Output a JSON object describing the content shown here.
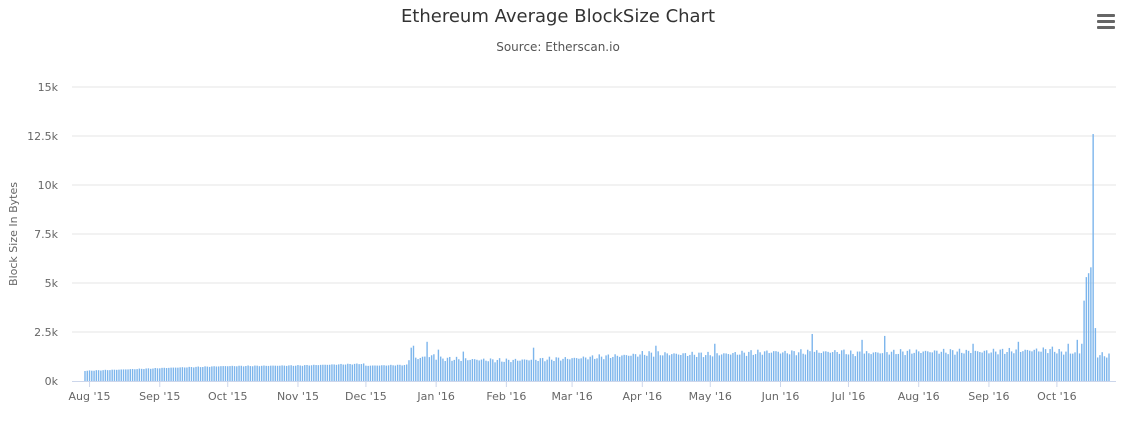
{
  "chart_data": {
    "type": "bar",
    "title": "Ethereum Average BlockSize Chart",
    "subtitle": "Source: Etherscan.io",
    "xlabel": "",
    "ylabel": "Block Size In Bytes",
    "ylim": [
      0,
      15000
    ],
    "y_ticks": [
      "0k",
      "2.5k",
      "5k",
      "7.5k",
      "10k",
      "12.5k",
      "15k"
    ],
    "y_tick_values": [
      0,
      2500,
      5000,
      7500,
      10000,
      12500,
      15000
    ],
    "x_ticks": [
      "Aug '15",
      "Sep '15",
      "Oct '15",
      "Nov '15",
      "Dec '15",
      "Jan '16",
      "Feb '16",
      "Mar '16",
      "Apr '16",
      "May '16",
      "Jun '16",
      "Jul '16",
      "Aug '16",
      "Sep '16",
      "Oct '16"
    ],
    "x_tick_dates": [
      "2015-08-01",
      "2015-09-01",
      "2015-10-01",
      "2015-11-01",
      "2015-12-01",
      "2016-01-01",
      "2016-02-01",
      "2016-03-01",
      "2016-04-01",
      "2016-05-01",
      "2016-06-01",
      "2016-07-01",
      "2016-08-01",
      "2016-09-01",
      "2016-10-01"
    ],
    "x_range": [
      "2015-07-30",
      "2016-10-24"
    ],
    "bar_color": "#7cb5ec",
    "grid": true,
    "legend": "none",
    "series": [
      {
        "segments": [
          {
            "from": "2015-07-30",
            "to": "2015-08-31",
            "start": 520,
            "end": 650
          },
          {
            "from": "2015-09-01",
            "to": "2015-09-30",
            "start": 660,
            "end": 760
          },
          {
            "from": "2015-10-01",
            "to": "2015-10-31",
            "start": 760,
            "end": 790
          },
          {
            "from": "2015-11-01",
            "to": "2015-11-30",
            "start": 790,
            "end": 880
          },
          {
            "from": "2015-12-01",
            "to": "2015-12-19",
            "start": 780,
            "end": 820
          },
          {
            "from": "2015-12-20",
            "to": "2015-12-31",
            "start": 1100,
            "end": 1300
          },
          {
            "from": "2016-01-01",
            "to": "2016-01-31",
            "start": 1150,
            "end": 1050
          },
          {
            "from": "2016-02-01",
            "to": "2016-02-29",
            "start": 1050,
            "end": 1150
          },
          {
            "from": "2016-03-01",
            "to": "2016-03-31",
            "start": 1150,
            "end": 1350
          },
          {
            "from": "2016-04-01",
            "to": "2016-04-30",
            "start": 1400,
            "end": 1350
          },
          {
            "from": "2016-05-01",
            "to": "2016-05-31",
            "start": 1350,
            "end": 1500
          },
          {
            "from": "2016-06-01",
            "to": "2016-06-30",
            "start": 1450,
            "end": 1500
          },
          {
            "from": "2016-07-01",
            "to": "2016-07-31",
            "start": 1400,
            "end": 1500
          },
          {
            "from": "2016-08-01",
            "to": "2016-08-31",
            "start": 1500,
            "end": 1500
          },
          {
            "from": "2016-09-01",
            "to": "2016-09-30",
            "start": 1500,
            "end": 1600
          },
          {
            "from": "2016-10-01",
            "to": "2016-10-24",
            "start": 1500,
            "end": 1300
          }
        ],
        "peaks": [
          {
            "date": "2015-12-21",
            "value": 1700
          },
          {
            "date": "2015-12-22",
            "value": 1800
          },
          {
            "date": "2015-12-28",
            "value": 2000
          },
          {
            "date": "2016-01-02",
            "value": 1600
          },
          {
            "date": "2016-01-13",
            "value": 1500
          },
          {
            "date": "2016-02-13",
            "value": 1700
          },
          {
            "date": "2016-04-07",
            "value": 1800
          },
          {
            "date": "2016-05-03",
            "value": 1900
          },
          {
            "date": "2016-06-15",
            "value": 2400
          },
          {
            "date": "2016-07-07",
            "value": 2100
          },
          {
            "date": "2016-07-17",
            "value": 2300
          },
          {
            "date": "2016-08-25",
            "value": 1900
          },
          {
            "date": "2016-09-14",
            "value": 2000
          },
          {
            "date": "2016-10-06",
            "value": 1900
          },
          {
            "date": "2016-10-10",
            "value": 2100
          },
          {
            "date": "2016-10-12",
            "value": 1900
          },
          {
            "date": "2016-10-13",
            "value": 4100
          },
          {
            "date": "2016-10-14",
            "value": 5300
          },
          {
            "date": "2016-10-15",
            "value": 5500
          },
          {
            "date": "2016-10-16",
            "value": 5800
          },
          {
            "date": "2016-10-17",
            "value": 12600
          },
          {
            "date": "2016-10-18",
            "value": 2700
          },
          {
            "date": "2016-10-19",
            "value": 1200
          }
        ]
      }
    ]
  },
  "toolbar": {
    "menu_icon": "hamburger-menu-icon"
  }
}
